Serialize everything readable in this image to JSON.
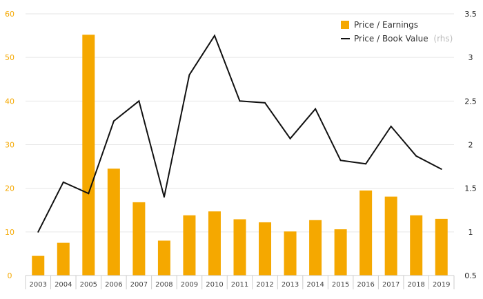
{
  "chart_data": {
    "type": "bar",
    "categories": [
      "2003",
      "2004",
      "2005",
      "2006",
      "2007",
      "2008",
      "2009",
      "2010",
      "2011",
      "2012",
      "2013",
      "2014",
      "2015",
      "2016",
      "2017",
      "2018",
      "2019"
    ],
    "series": [
      {
        "name": "Price / Earnings",
        "type": "bar",
        "axis": "left",
        "color": "#f5a800",
        "values": [
          4.5,
          7.5,
          55.2,
          24.5,
          16.8,
          8.0,
          13.8,
          14.7,
          12.9,
          12.2,
          10.1,
          12.7,
          10.6,
          19.5,
          18.1,
          13.8,
          13.0
        ]
      },
      {
        "name": "Price / Book Value",
        "name_suffix": "(rhs)",
        "type": "line",
        "axis": "right",
        "color": "#111111",
        "values": [
          1.0,
          1.57,
          1.44,
          2.27,
          2.5,
          1.4,
          2.8,
          3.25,
          2.5,
          2.48,
          2.07,
          2.41,
          1.82,
          1.78,
          2.21,
          1.87,
          1.72
        ]
      }
    ],
    "y_left": {
      "lim": [
        0,
        60
      ],
      "ticks": [
        "0",
        "10",
        "20",
        "30",
        "40",
        "50",
        "60"
      ]
    },
    "y_right": {
      "lim": [
        0.5,
        3.5
      ],
      "ticks": [
        "0.5",
        "1",
        "1.5",
        "2",
        "2.5",
        "3",
        "3.5"
      ]
    },
    "grid": true,
    "legend_position": "top-right",
    "title": "",
    "xlabel": "",
    "ylabel": ""
  }
}
